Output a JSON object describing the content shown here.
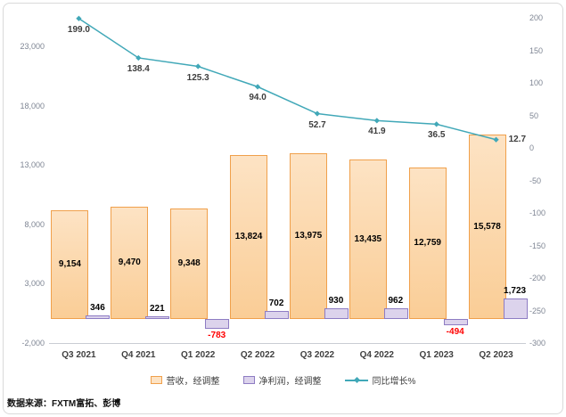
{
  "source": "数据来源：FXTM富拓、彭博",
  "legend": [
    {
      "label": "营收，经调整"
    },
    {
      "label": "净利润，经调整"
    },
    {
      "label": "同比增长%"
    }
  ],
  "colors": {
    "revenue_fill": "#FDE3C4",
    "revenue_fill_dark": "#FACD96",
    "revenue_border": "#F0A04B",
    "netprofit_fill": "#DCD3EC",
    "netprofit_border": "#8E7CC3",
    "growth_line": "#41A8B8",
    "negative_label": "#FF0000",
    "axis_label": "#7F8694",
    "category_label": "#404040"
  },
  "chart_data": {
    "type": "combo",
    "title": "",
    "grid": false,
    "legend_position": "bottom",
    "categories": [
      "Q3 2021",
      "Q4 2021",
      "Q1 2022",
      "Q2 2022",
      "Q3 2022",
      "Q4 2022",
      "Q1 2023",
      "Q2 2023"
    ],
    "left_axis": {
      "min": -2000,
      "max": 23000,
      "ticks": [
        {
          "value": 23000,
          "label": "23,000"
        },
        {
          "value": 18000,
          "label": "18,000"
        },
        {
          "value": 13000,
          "label": "13,000"
        },
        {
          "value": 8000,
          "label": "8,000"
        },
        {
          "value": 3000,
          "label": "3,000"
        },
        {
          "value": -2000,
          "label": "-2,000"
        }
      ]
    },
    "right_axis": {
      "min": -300,
      "max": 200,
      "ticks": [
        {
          "value": 200,
          "label": "200"
        },
        {
          "value": 150,
          "label": "150"
        },
        {
          "value": 100,
          "label": "100"
        },
        {
          "value": 50,
          "label": "50"
        },
        {
          "value": 0,
          "label": "0"
        },
        {
          "value": -50,
          "label": "-50"
        },
        {
          "value": -100,
          "label": "-100"
        },
        {
          "value": -150,
          "label": "-150"
        },
        {
          "value": -200,
          "label": "-200"
        },
        {
          "value": -250,
          "label": "-250"
        },
        {
          "value": -300,
          "label": "-300"
        }
      ]
    },
    "series": [
      {
        "name": "营收，经调整",
        "type": "bar",
        "axis": "left",
        "values": [
          9154,
          9470,
          9348,
          13824,
          13975,
          13435,
          12759,
          15578
        ],
        "labels": [
          "9,154",
          "9,470",
          "9,348",
          "13,824",
          "13,975",
          "13,435",
          "12,759",
          "15,578"
        ]
      },
      {
        "name": "净利润，经调整",
        "type": "bar",
        "axis": "left",
        "values": [
          346,
          221,
          -783,
          702,
          930,
          962,
          -494,
          1723
        ],
        "labels": [
          "346",
          "221",
          "-783",
          "702",
          "930",
          "962",
          "-494",
          "1,723"
        ]
      },
      {
        "name": "同比增长%",
        "type": "line",
        "axis": "right",
        "values": [
          199.0,
          138.4,
          125.3,
          94.0,
          52.7,
          41.9,
          36.5,
          12.7
        ],
        "labels": [
          "199.0",
          "138.4",
          "125.3",
          "94.0",
          "52.7",
          "41.9",
          "36.5",
          "12.7"
        ]
      }
    ]
  }
}
